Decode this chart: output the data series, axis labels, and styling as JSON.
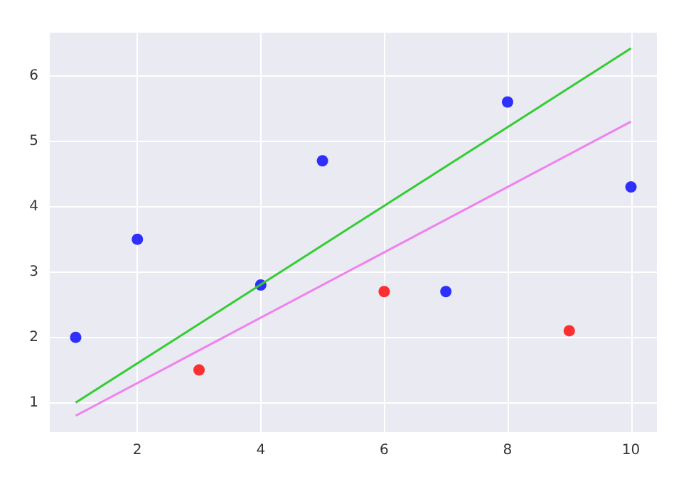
{
  "chart_data": {
    "type": "scatter",
    "xlim": [
      0.58,
      10.42
    ],
    "ylim": [
      0.55,
      6.66
    ],
    "xticks": [
      2,
      4,
      6,
      8,
      10
    ],
    "yticks": [
      1,
      2,
      3,
      4,
      5,
      6
    ],
    "grid": true,
    "series": [
      {
        "color": "#0000ff",
        "x": [
          1,
          2,
          4,
          5,
          7,
          8,
          10
        ],
        "values": [
          2,
          3.5,
          2.8,
          4.7,
          2.7,
          5.6,
          4.3
        ]
      },
      {
        "color": "#ff0000",
        "x": [
          3,
          6,
          9
        ],
        "values": [
          1.5,
          2.7,
          2.1
        ]
      },
      {
        "type": "line",
        "marker": "none",
        "color": "#32cd32",
        "x": [
          1,
          10
        ],
        "values": [
          1.0,
          6.42
        ]
      },
      {
        "type": "line",
        "marker": "none",
        "color": "#ee82ee",
        "x": [
          1,
          10
        ],
        "values": [
          0.8,
          5.3
        ]
      }
    ]
  }
}
